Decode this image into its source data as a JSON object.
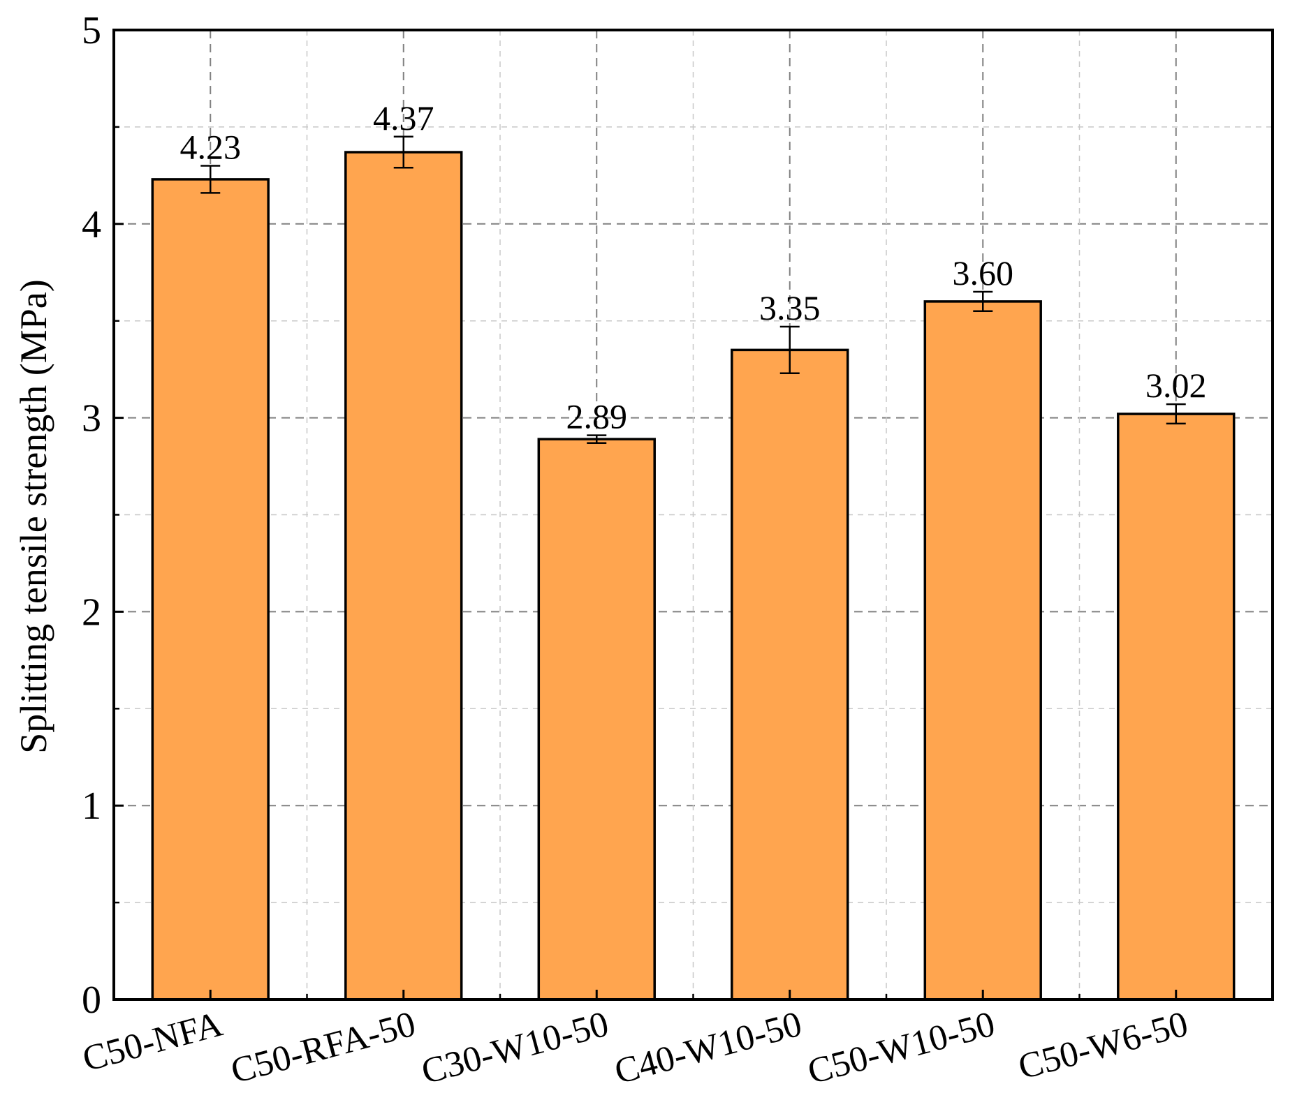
{
  "chart_data": {
    "type": "bar",
    "title": "",
    "xlabel": "",
    "ylabel": "Splitting tensile strength (MPa)",
    "ylim": [
      0,
      5
    ],
    "yticks": [
      "0",
      "1",
      "2",
      "3",
      "4",
      "5"
    ],
    "categories": [
      "C50-NFA",
      "C50-RFA-50",
      "C30-W10-50",
      "C40-W10-50",
      "C50-W10-50",
      "C50-W6-50"
    ],
    "values": [
      4.23,
      4.37,
      2.89,
      3.35,
      3.6,
      3.02
    ],
    "errors": [
      0.07,
      0.08,
      0.02,
      0.12,
      0.05,
      0.05
    ],
    "value_labels": [
      "4.23",
      "4.37",
      "2.89",
      "3.35",
      "3.60",
      "3.02"
    ],
    "grid": true,
    "legend": "none",
    "colors": {
      "bar": "#FFA54F",
      "edge": "#000000",
      "grid": "#808080"
    }
  }
}
